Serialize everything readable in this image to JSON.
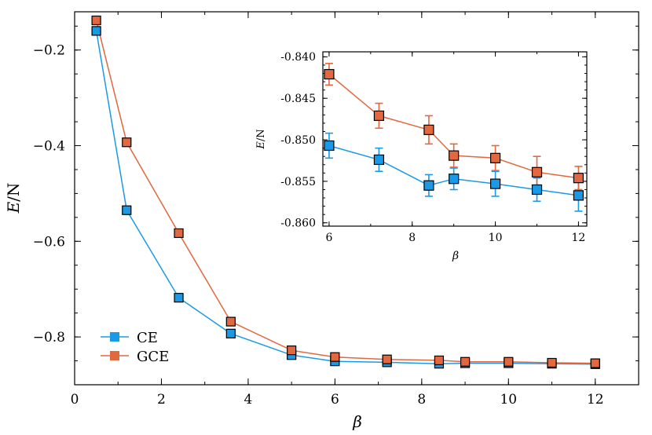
{
  "chart_data": [
    {
      "type": "line",
      "id": "main",
      "title": "",
      "xlabel": "β",
      "ylabel_italic": "E",
      "ylabel_rest": "/N",
      "xlim": [
        0,
        13
      ],
      "ylim": [
        -0.9,
        -0.12
      ],
      "xticks": [
        0,
        2,
        4,
        6,
        8,
        10,
        12
      ],
      "xtick_labels": [
        "0",
        "2",
        "4",
        "6",
        "8",
        "10",
        "12"
      ],
      "yticks": [
        -0.2,
        -0.4,
        -0.6,
        -0.8
      ],
      "ytick_labels": [
        "−0.2",
        "−0.4",
        "−0.6",
        "−0.8"
      ],
      "legend_position": "lower-left",
      "series": [
        {
          "name": "CE",
          "color": "#1a9ae6",
          "x": [
            0.5,
            1.2,
            2.4,
            3.6,
            5.0,
            6.0,
            7.2,
            8.4,
            9.0,
            10.0,
            11.0,
            12.0
          ],
          "y": [
            -0.16,
            -0.535,
            -0.718,
            -0.793,
            -0.838,
            -0.851,
            -0.853,
            -0.856,
            -0.855,
            -0.855,
            -0.856,
            -0.857
          ]
        },
        {
          "name": "GCE",
          "color": "#e2683f",
          "x": [
            0.5,
            1.2,
            2.4,
            3.6,
            5.0,
            6.0,
            7.2,
            8.4,
            9.0,
            10.0,
            11.0,
            12.0
          ],
          "y": [
            -0.138,
            -0.393,
            -0.583,
            -0.768,
            -0.828,
            -0.842,
            -0.847,
            -0.849,
            -0.852,
            -0.852,
            -0.854,
            -0.855
          ]
        }
      ]
    },
    {
      "type": "line",
      "id": "inset",
      "title": "",
      "xlabel": "β",
      "ylabel_italic": "E",
      "ylabel_rest": "/N",
      "xlim": [
        5.85,
        12.2
      ],
      "ylim": [
        -0.8604,
        -0.8394
      ],
      "xticks": [
        6,
        8,
        10,
        12
      ],
      "xtick_labels": [
        "6",
        "8",
        "10",
        "12"
      ],
      "yticks": [
        -0.84,
        -0.845,
        -0.85,
        -0.855,
        -0.86
      ],
      "ytick_labels": [
        "-0.840",
        "-0.845",
        "-0.850",
        "-0.855",
        "-0.860"
      ],
      "series": [
        {
          "name": "CE",
          "color": "#1a9ae6",
          "x": [
            6.0,
            7.2,
            8.4,
            9.0,
            10.0,
            11.0,
            12.0
          ],
          "y": [
            -0.8507,
            -0.8524,
            -0.8555,
            -0.8547,
            -0.8553,
            -0.856,
            -0.8567
          ],
          "err": [
            0.0015,
            0.0014,
            0.0013,
            0.0013,
            0.0015,
            0.0014,
            0.0019
          ]
        },
        {
          "name": "GCE",
          "color": "#e2683f",
          "x": [
            6.0,
            7.2,
            8.4,
            9.0,
            10.0,
            11.0,
            12.0
          ],
          "y": [
            -0.8421,
            -0.8471,
            -0.8488,
            -0.8519,
            -0.8522,
            -0.8539,
            -0.8546
          ],
          "err": [
            0.0013,
            0.0015,
            0.0017,
            0.0014,
            0.0015,
            0.0019,
            0.0014
          ]
        }
      ]
    }
  ]
}
